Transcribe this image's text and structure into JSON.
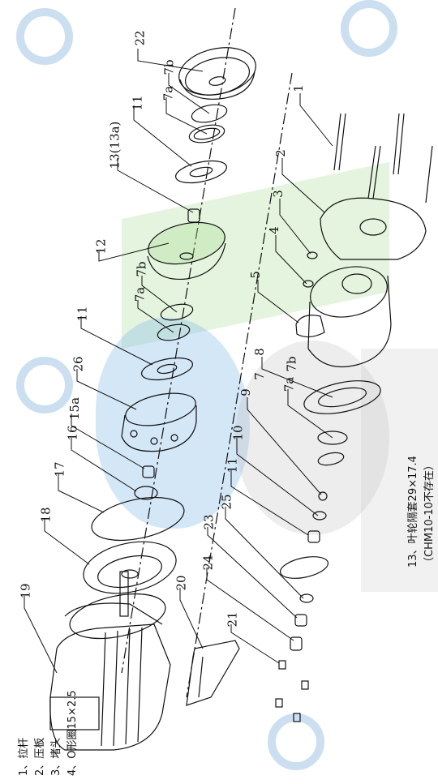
{
  "labels": {
    "n1": "1",
    "n2": "2",
    "n3": "3",
    "n4": "4",
    "n5": "5",
    "n7": "7",
    "n7a_top": "7a",
    "n7b_top": "7b",
    "n7a_mid": "7a",
    "n7b_mid": "7b",
    "n7a_low": "7a",
    "n7b_low": "7b",
    "n8": "8",
    "n9": "9",
    "n10": "10",
    "n11_top": "11",
    "n11_mid": "11",
    "n11_low": "11",
    "n12": "12",
    "n13": "13(13a)",
    "n15a": "15a",
    "n16": "16",
    "n17": "17",
    "n18": "18",
    "n19": "19",
    "n20": "20",
    "n21": "21",
    "n22": "22",
    "n23": "23",
    "n24": "24",
    "n25": "25",
    "n26": "26"
  },
  "legend": {
    "item1": "1、拉杆",
    "item2": "2、压板",
    "item3": "3、堵头",
    "item4": "4、O形圈15×2.5",
    "item13": "13、叶轮隔套29×17.4",
    "item13_note": "（CHM10-10不存在）"
  },
  "colors": {
    "ink": "#111111",
    "accent": "#4fa3e0",
    "green": "#a6d48f"
  }
}
